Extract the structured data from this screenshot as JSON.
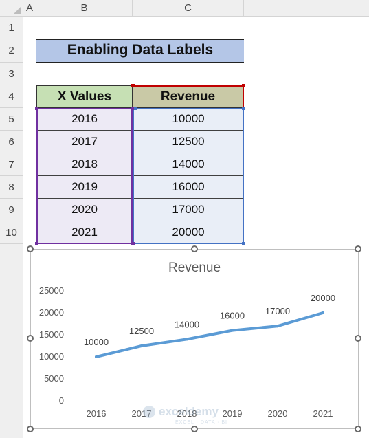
{
  "columns": [
    "A",
    "B",
    "C"
  ],
  "rows": [
    "1",
    "2",
    "3",
    "4",
    "5",
    "6",
    "7",
    "8",
    "9",
    "10"
  ],
  "sheet_title": "Enabling Data Labels",
  "table": {
    "headers": [
      "X Values",
      "Revenue"
    ],
    "rows": [
      [
        "2016",
        "10000"
      ],
      [
        "2017",
        "12500"
      ],
      [
        "2018",
        "14000"
      ],
      [
        "2019",
        "16000"
      ],
      [
        "2020",
        "17000"
      ],
      [
        "2021",
        "20000"
      ]
    ]
  },
  "colors": {
    "title_fill": "#b4c6e7",
    "header_x_fill": "#c6e0b4",
    "header_rev_fill": "#c9c9a6",
    "data_fill": "#edeaf5",
    "series_line": "#5b9bd5",
    "range_purple": "#7030a0",
    "range_blue": "#4472c4",
    "range_red": "#c00000"
  },
  "chart_data": {
    "type": "line",
    "title": "Revenue",
    "categories": [
      "2016",
      "2017",
      "2018",
      "2019",
      "2020",
      "2021"
    ],
    "series": [
      {
        "name": "Revenue",
        "values": [
          10000,
          12500,
          14000,
          16000,
          17000,
          20000
        ]
      }
    ],
    "data_labels": [
      "10000",
      "12500",
      "14000",
      "16000",
      "17000",
      "20000"
    ],
    "yticks": [
      "0",
      "5000",
      "10000",
      "15000",
      "20000",
      "25000"
    ],
    "ylim": [
      0,
      25000
    ],
    "grid": false,
    "legend": "none"
  },
  "watermark": {
    "name": "exceldemy",
    "tagline": "EXCEL · DATA · BI"
  }
}
